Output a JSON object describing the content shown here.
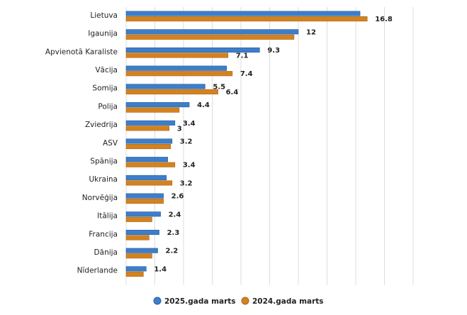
{
  "chart_data": {
    "type": "bar",
    "orientation": "horizontal",
    "categories": [
      "Lietuva",
      "Igaunija",
      "Apvienotā Karaliste",
      "Vācija",
      "Somija",
      "Polija",
      "Zviedrija",
      "ASV",
      "Spānija",
      "Ukraina",
      "Norvēģija",
      "Itālija",
      "Francija",
      "Dānija",
      "Nīderlande"
    ],
    "series": [
      {
        "name": "2025.gada marts",
        "color": "#3d7ec9",
        "values": [
          16.3,
          12,
          9.3,
          7.0,
          5.5,
          4.4,
          3.4,
          3.2,
          2.9,
          2.8,
          2.6,
          2.4,
          2.3,
          2.2,
          1.4
        ],
        "labels": [
          "",
          "12",
          "9.3",
          "",
          "5.5",
          "4.4",
          "3.4",
          "3.2",
          "",
          "",
          "2.6",
          "2.4",
          "2.3",
          "2.2",
          "1.4"
        ]
      },
      {
        "name": "2024.gada marts",
        "color": "#d4821f",
        "values": [
          16.8,
          11.7,
          7.1,
          7.4,
          6.4,
          3.7,
          3,
          3.1,
          3.4,
          3.2,
          2.6,
          1.8,
          1.6,
          1.8,
          1.2
        ],
        "labels": [
          "16.8",
          "",
          "7.1",
          "7.4",
          "6.4",
          "",
          "3",
          "",
          "3.4",
          "3.2",
          "",
          "",
          "",
          "",
          ""
        ]
      }
    ],
    "xlim": [
      0,
      20
    ],
    "grid": true,
    "legend": "bottom-center",
    "title": "",
    "xlabel": "",
    "ylabel": ""
  }
}
